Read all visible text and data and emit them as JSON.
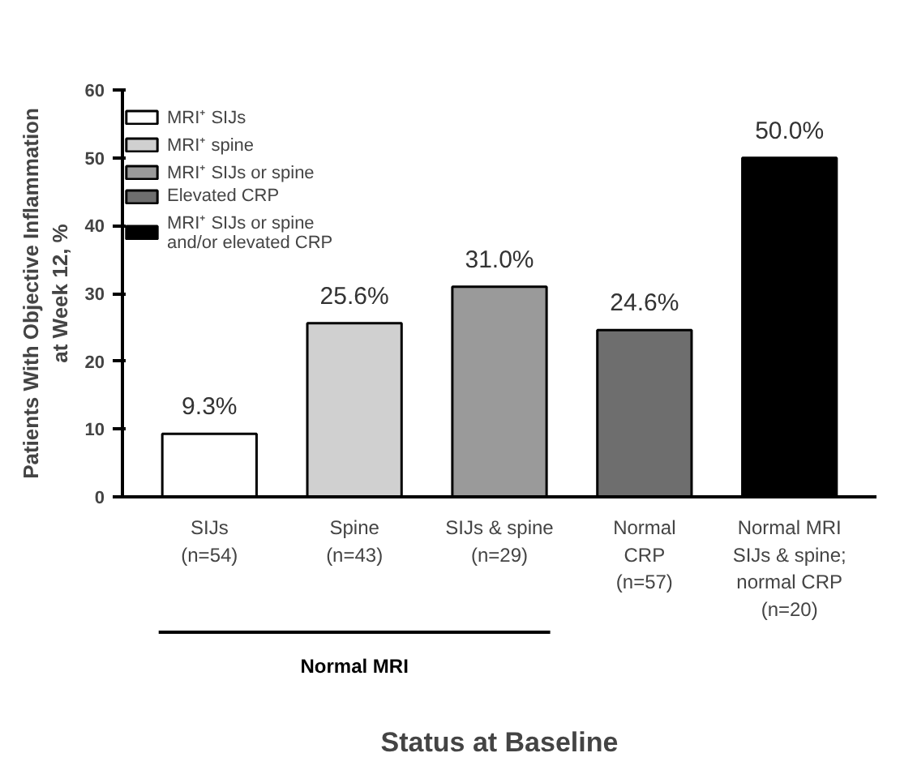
{
  "chart_data": {
    "type": "bar",
    "categories": [
      "SIJs\n(n=54)",
      "Spine\n(n=43)",
      "SIJs & spine\n(n=29)",
      "Normal\nCRP\n(n=57)",
      "Normal MRI\nSIJs & spine;\nnormal CRP\n(n=20)"
    ],
    "series": [
      {
        "name": "MRI⁺ SIJs",
        "color": "#ffffff",
        "values": [
          9.3,
          null,
          null,
          null,
          null
        ]
      },
      {
        "name": "MRI⁺ spine",
        "color": "#d0d0d0",
        "values": [
          null,
          25.6,
          null,
          null,
          null
        ]
      },
      {
        "name": "MRI⁺ SIJs or spine",
        "color": "#9a9a9a",
        "values": [
          null,
          null,
          31.0,
          null,
          null
        ]
      },
      {
        "name": "Elevated CRP",
        "color": "#6e6e6e",
        "values": [
          null,
          null,
          null,
          24.6,
          null
        ]
      },
      {
        "name": "MRI⁺ SIJs or spine\nand/or elevated CRP",
        "color": "#000000",
        "values": [
          null,
          null,
          null,
          null,
          50.0
        ]
      }
    ],
    "value_labels": [
      "9.3%",
      "25.6%",
      "31.0%",
      "24.6%",
      "50.0%"
    ],
    "xlabel": "Status at Baseline",
    "ylabel": "Patients With Objective Inflammation\nat Week 12, %",
    "ylim": [
      0,
      60
    ],
    "yticks": [
      0,
      10,
      20,
      30,
      40,
      50,
      60
    ],
    "annotations": [
      "Normal MRI"
    ],
    "grid": false,
    "legend": "top left"
  }
}
